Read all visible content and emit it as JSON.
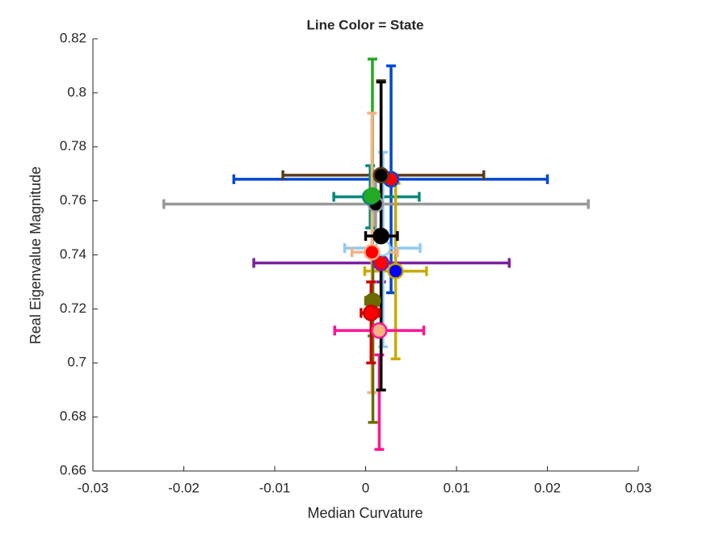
{
  "chart_data": {
    "type": "errorbar-scatter",
    "title": "Line Color = State",
    "xlabel": "Median Curvature",
    "ylabel": "Real Eigenvalue Magnitude",
    "xlim": [
      -0.03,
      0.03
    ],
    "xticks": [
      -0.03,
      -0.02,
      -0.01,
      0,
      0.01,
      0.02,
      0.03
    ],
    "ylim": [
      0.66,
      0.82
    ],
    "yticks": [
      0.66,
      0.68,
      0.7,
      0.72,
      0.74,
      0.76,
      0.78,
      0.8,
      0.82
    ],
    "points": [
      {
        "x": 0.0028,
        "y": 0.768,
        "xlow": -0.0145,
        "xhigh": 0.02,
        "ylow": 0.726,
        "yhigh": 0.81,
        "color": "#0047d4",
        "face": "#ff0000"
      },
      {
        "x": 0.0017,
        "y": 0.7695,
        "xlow": -0.0091,
        "xhigh": 0.013,
        "ylow": 0.69,
        "yhigh": 0.8045,
        "color": "#5c3c1c",
        "face": "#000000"
      },
      {
        "x": 0.0011,
        "y": 0.7588,
        "xlow": -0.0222,
        "xhigh": 0.0245,
        "ylow": 0.747,
        "yhigh": 0.771,
        "color": "#999999",
        "face": "#000000"
      },
      {
        "x": 0.0005,
        "y": 0.7615,
        "xlow": -0.0035,
        "xhigh": 0.0059,
        "ylow": 0.75,
        "yhigh": 0.773,
        "color": "#00897b",
        "face": "#2ca02c"
      },
      {
        "x": 0.00075,
        "y": 0.762,
        "xlow": 0.0,
        "xhigh": 0.0015,
        "ylow": 0.71,
        "yhigh": 0.8125,
        "color": "#22aa22",
        "face": "#22aa22"
      },
      {
        "x": 0.0017,
        "y": 0.737,
        "xlow": -0.0123,
        "xhigh": 0.0158,
        "ylow": 0.73,
        "yhigh": 0.744,
        "color": "#7b1fa2",
        "face": "#ff0000"
      },
      {
        "x": 0.0033,
        "y": 0.734,
        "xlow": -0.0001,
        "xhigh": 0.0067,
        "ylow": 0.7015,
        "yhigh": 0.7665,
        "color": "#c8aa00",
        "face": "#0000ff"
      },
      {
        "x": 0.0019,
        "y": 0.7425,
        "xlow": -0.0023,
        "xhigh": 0.006,
        "ylow": 0.706,
        "yhigh": 0.778,
        "color": "#8fcbf0",
        "face": "#ffffff"
      },
      {
        "x": 0.0007,
        "y": 0.741,
        "xlow": -0.0015,
        "xhigh": 0.0035,
        "ylow": 0.689,
        "yhigh": 0.7925,
        "color": "#f4b183",
        "face": "#ff0000"
      },
      {
        "x": 0.0015,
        "y": 0.712,
        "xlow": -0.0034,
        "xhigh": 0.0064,
        "ylow": 0.668,
        "yhigh": 0.703,
        "color": "#ff1493",
        "face": "#f4b183"
      },
      {
        "x": 0.0008,
        "y": 0.723,
        "xlow": 0.0,
        "xhigh": 0.0015,
        "ylow": 0.678,
        "yhigh": 0.742,
        "color": "#6b6b00",
        "face": "#6b6b00"
      },
      {
        "x": 0.0017,
        "y": 0.747,
        "xlow": 0.0,
        "xhigh": 0.0035,
        "ylow": 0.69,
        "yhigh": 0.804,
        "color": "#000000",
        "face": "#000000"
      },
      {
        "x": 0.0006,
        "y": 0.7185,
        "xlow": -0.0005,
        "xhigh": 0.0015,
        "ylow": 0.7,
        "yhigh": 0.73,
        "color": "#cc0000",
        "face": "#ff0000"
      }
    ]
  }
}
